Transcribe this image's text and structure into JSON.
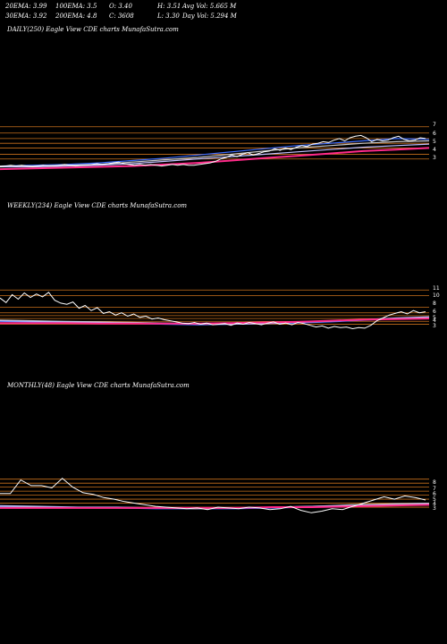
{
  "header": {
    "row1": [
      "20EMA: 3.99",
      "100EMA: 3.5",
      "O: 3.40",
      "H: 3.51",
      "Avg Vol: 5.665 M"
    ],
    "row2": [
      "30EMA: 3.92",
      "200EMA: 4.8",
      "C: 3608",
      "L: 3.30",
      "Day Vol: 5.294 M"
    ]
  },
  "colors": {
    "background": "#000000",
    "price": "#ffffff",
    "level_lines": "#c8701c",
    "ema_fast": "#3a6bff",
    "ema_slow": "#ff2a8a",
    "ema_mid": "#c8c8c8",
    "ema_200": "#c0c0ff"
  },
  "chart_data": [
    {
      "type": "line",
      "title": "DAILY(250) Eagle View CDE charts MunafaSutra.com",
      "yticks": [
        "7",
        "6",
        "5",
        "4",
        "3"
      ],
      "price": [
        1.9,
        2.0,
        2.1,
        2.0,
        2.1,
        2.0,
        1.9,
        2.0,
        2.1,
        2.0,
        2.0,
        2.1,
        2.2,
        2.1,
        2.0,
        2.1,
        2.1,
        2.2,
        2.3,
        2.2,
        2.3,
        2.4,
        2.5,
        2.3,
        2.2,
        2.1,
        2.2,
        2.1,
        2.2,
        2.1,
        2.0,
        2.1,
        2.2,
        2.1,
        2.2,
        2.1,
        2.1,
        2.2,
        2.3,
        2.4,
        2.6,
        2.9,
        3.1,
        3.4,
        3.2,
        3.5,
        3.7,
        3.4,
        3.6,
        3.8,
        3.9,
        4.2,
        4.0,
        4.3,
        4.1,
        4.4,
        4.6,
        4.5,
        4.8,
        4.9,
        5.1,
        5.0,
        5.3,
        5.5,
        5.2,
        5.6,
        5.8,
        5.9,
        5.6,
        5.1,
        5.4,
        5.2,
        5.3,
        5.6,
        5.8,
        5.4,
        5.2,
        5.3,
        5.6,
        5.5
      ],
      "series": [
        {
          "key": "ema_fast",
          "values": [
            2.0,
            2.1,
            2.2,
            2.4,
            2.7,
            3.0,
            3.4,
            3.8,
            4.2,
            4.6,
            4.9,
            5.2,
            5.5,
            5.4
          ]
        },
        {
          "key": "ema_mid",
          "values": [
            2.0,
            2.0,
            2.1,
            2.2,
            2.5,
            2.8,
            3.1,
            3.5,
            3.9,
            4.3,
            4.6,
            4.9,
            5.1,
            5.2
          ]
        },
        {
          "key": "ema_200",
          "values": [
            1.9,
            1.9,
            2.0,
            2.1,
            2.3,
            2.6,
            2.9,
            3.2,
            3.5,
            3.8,
            4.1,
            4.4,
            4.6,
            4.8
          ]
        },
        {
          "key": "ema_slow",
          "values": [
            1.6,
            1.7,
            1.8,
            1.9,
            2.0,
            2.2,
            2.4,
            2.7,
            3.0,
            3.3,
            3.6,
            3.9,
            4.1,
            4.3
          ]
        }
      ],
      "levels": [
        7.0,
        6.2,
        5.5,
        4.9,
        4.3,
        3.5,
        2.9
      ]
    },
    {
      "type": "line",
      "title": "WEEKLY(234) Eagle View CDE charts MunafaSutra.com",
      "yticks": [
        "11",
        "10",
        "8",
        "6",
        "5",
        "4",
        "3"
      ],
      "price": [
        9.6,
        8.8,
        10.2,
        9.4,
        10.5,
        9.7,
        10.3,
        9.8,
        10.6,
        9.2,
        8.7,
        8.5,
        8.9,
        7.8,
        8.3,
        7.4,
        7.9,
        6.9,
        7.2,
        6.6,
        7.0,
        6.4,
        6.8,
        6.2,
        6.4,
        5.9,
        6.1,
        5.8,
        5.6,
        5.4,
        5.2,
        5.1,
        5.3,
        5.0,
        5.2,
        4.9,
        5.0,
        5.1,
        4.8,
        5.2,
        5.0,
        5.3,
        5.1,
        4.9,
        5.2,
        5.4,
        5.0,
        5.2,
        4.9,
        5.3,
        5.1,
        4.8,
        4.5,
        4.7,
        4.3,
        4.6,
        4.4,
        4.5,
        4.2,
        4.4,
        4.3,
        4.8,
        5.6,
        6.1,
        6.6,
        6.9,
        7.2,
        6.8,
        7.4,
        7.0,
        7.2
      ],
      "series": [
        {
          "key": "ema_fast",
          "values": [
            5.5,
            5.4,
            5.3,
            5.2,
            5.1,
            5.0,
            4.9,
            5.0,
            5.1,
            5.2,
            5.4,
            5.7,
            6.0,
            6.2
          ]
        },
        {
          "key": "ema_mid",
          "values": [
            5.7,
            5.6,
            5.5,
            5.4,
            5.3,
            5.2,
            5.1,
            5.1,
            5.2,
            5.4,
            5.6,
            5.8,
            6.0,
            6.1
          ]
        },
        {
          "key": "ema_200",
          "values": [
            5.6,
            5.5,
            5.4,
            5.3,
            5.2,
            5.1,
            5.0,
            5.0,
            5.1,
            5.3,
            5.5,
            5.8,
            6.1,
            6.3
          ]
        },
        {
          "key": "ema_slow",
          "values": [
            5.2,
            5.2,
            5.2,
            5.1,
            5.1,
            5.1,
            5.1,
            5.2,
            5.3,
            5.4,
            5.6,
            5.8,
            5.9,
            6.0
          ]
        }
      ],
      "levels": [
        11.0,
        10.0,
        8.0,
        7.0,
        6.5,
        6.0,
        5.5,
        5.0
      ]
    },
    {
      "type": "line",
      "title": "MONTHLY(48) Eagle View CDE charts MunafaSutra.com",
      "yticks": [
        "8",
        "7",
        "6",
        "5",
        "4",
        "3"
      ],
      "price": [
        7.2,
        7.2,
        8.9,
        8.2,
        8.2,
        7.9,
        9.1,
        8.0,
        7.3,
        7.1,
        6.7,
        6.5,
        6.2,
        6.0,
        5.8,
        5.6,
        5.5,
        5.4,
        5.3,
        5.4,
        5.2,
        5.5,
        5.4,
        5.3,
        5.5,
        5.4,
        5.2,
        5.3,
        5.6,
        5.1,
        4.8,
        5.0,
        5.3,
        5.2,
        5.6,
        6.0,
        6.4,
        6.8,
        6.5,
        6.9,
        6.7,
        6.4
      ],
      "series": [
        {
          "key": "ema_fast",
          "values": [
            5.6,
            5.5,
            5.4,
            5.4,
            5.3,
            5.3,
            5.3,
            5.4,
            5.5,
            5.7,
            5.9,
            6.0
          ]
        },
        {
          "key": "ema_mid",
          "values": [
            5.5,
            5.5,
            5.4,
            5.4,
            5.4,
            5.3,
            5.4,
            5.5,
            5.6,
            5.8,
            5.9,
            6.0
          ]
        },
        {
          "key": "ema_200",
          "values": [
            5.7,
            5.6,
            5.5,
            5.5,
            5.4,
            5.4,
            5.4,
            5.5,
            5.6,
            5.7,
            5.8,
            5.9
          ]
        },
        {
          "key": "ema_slow",
          "values": [
            5.4,
            5.4,
            5.4,
            5.4,
            5.4,
            5.4,
            5.4,
            5.5,
            5.5,
            5.6,
            5.7,
            5.8
          ]
        }
      ],
      "levels": [
        9.0,
        8.5,
        8.0,
        7.5,
        7.0,
        6.5,
        6.0,
        5.5
      ]
    }
  ]
}
